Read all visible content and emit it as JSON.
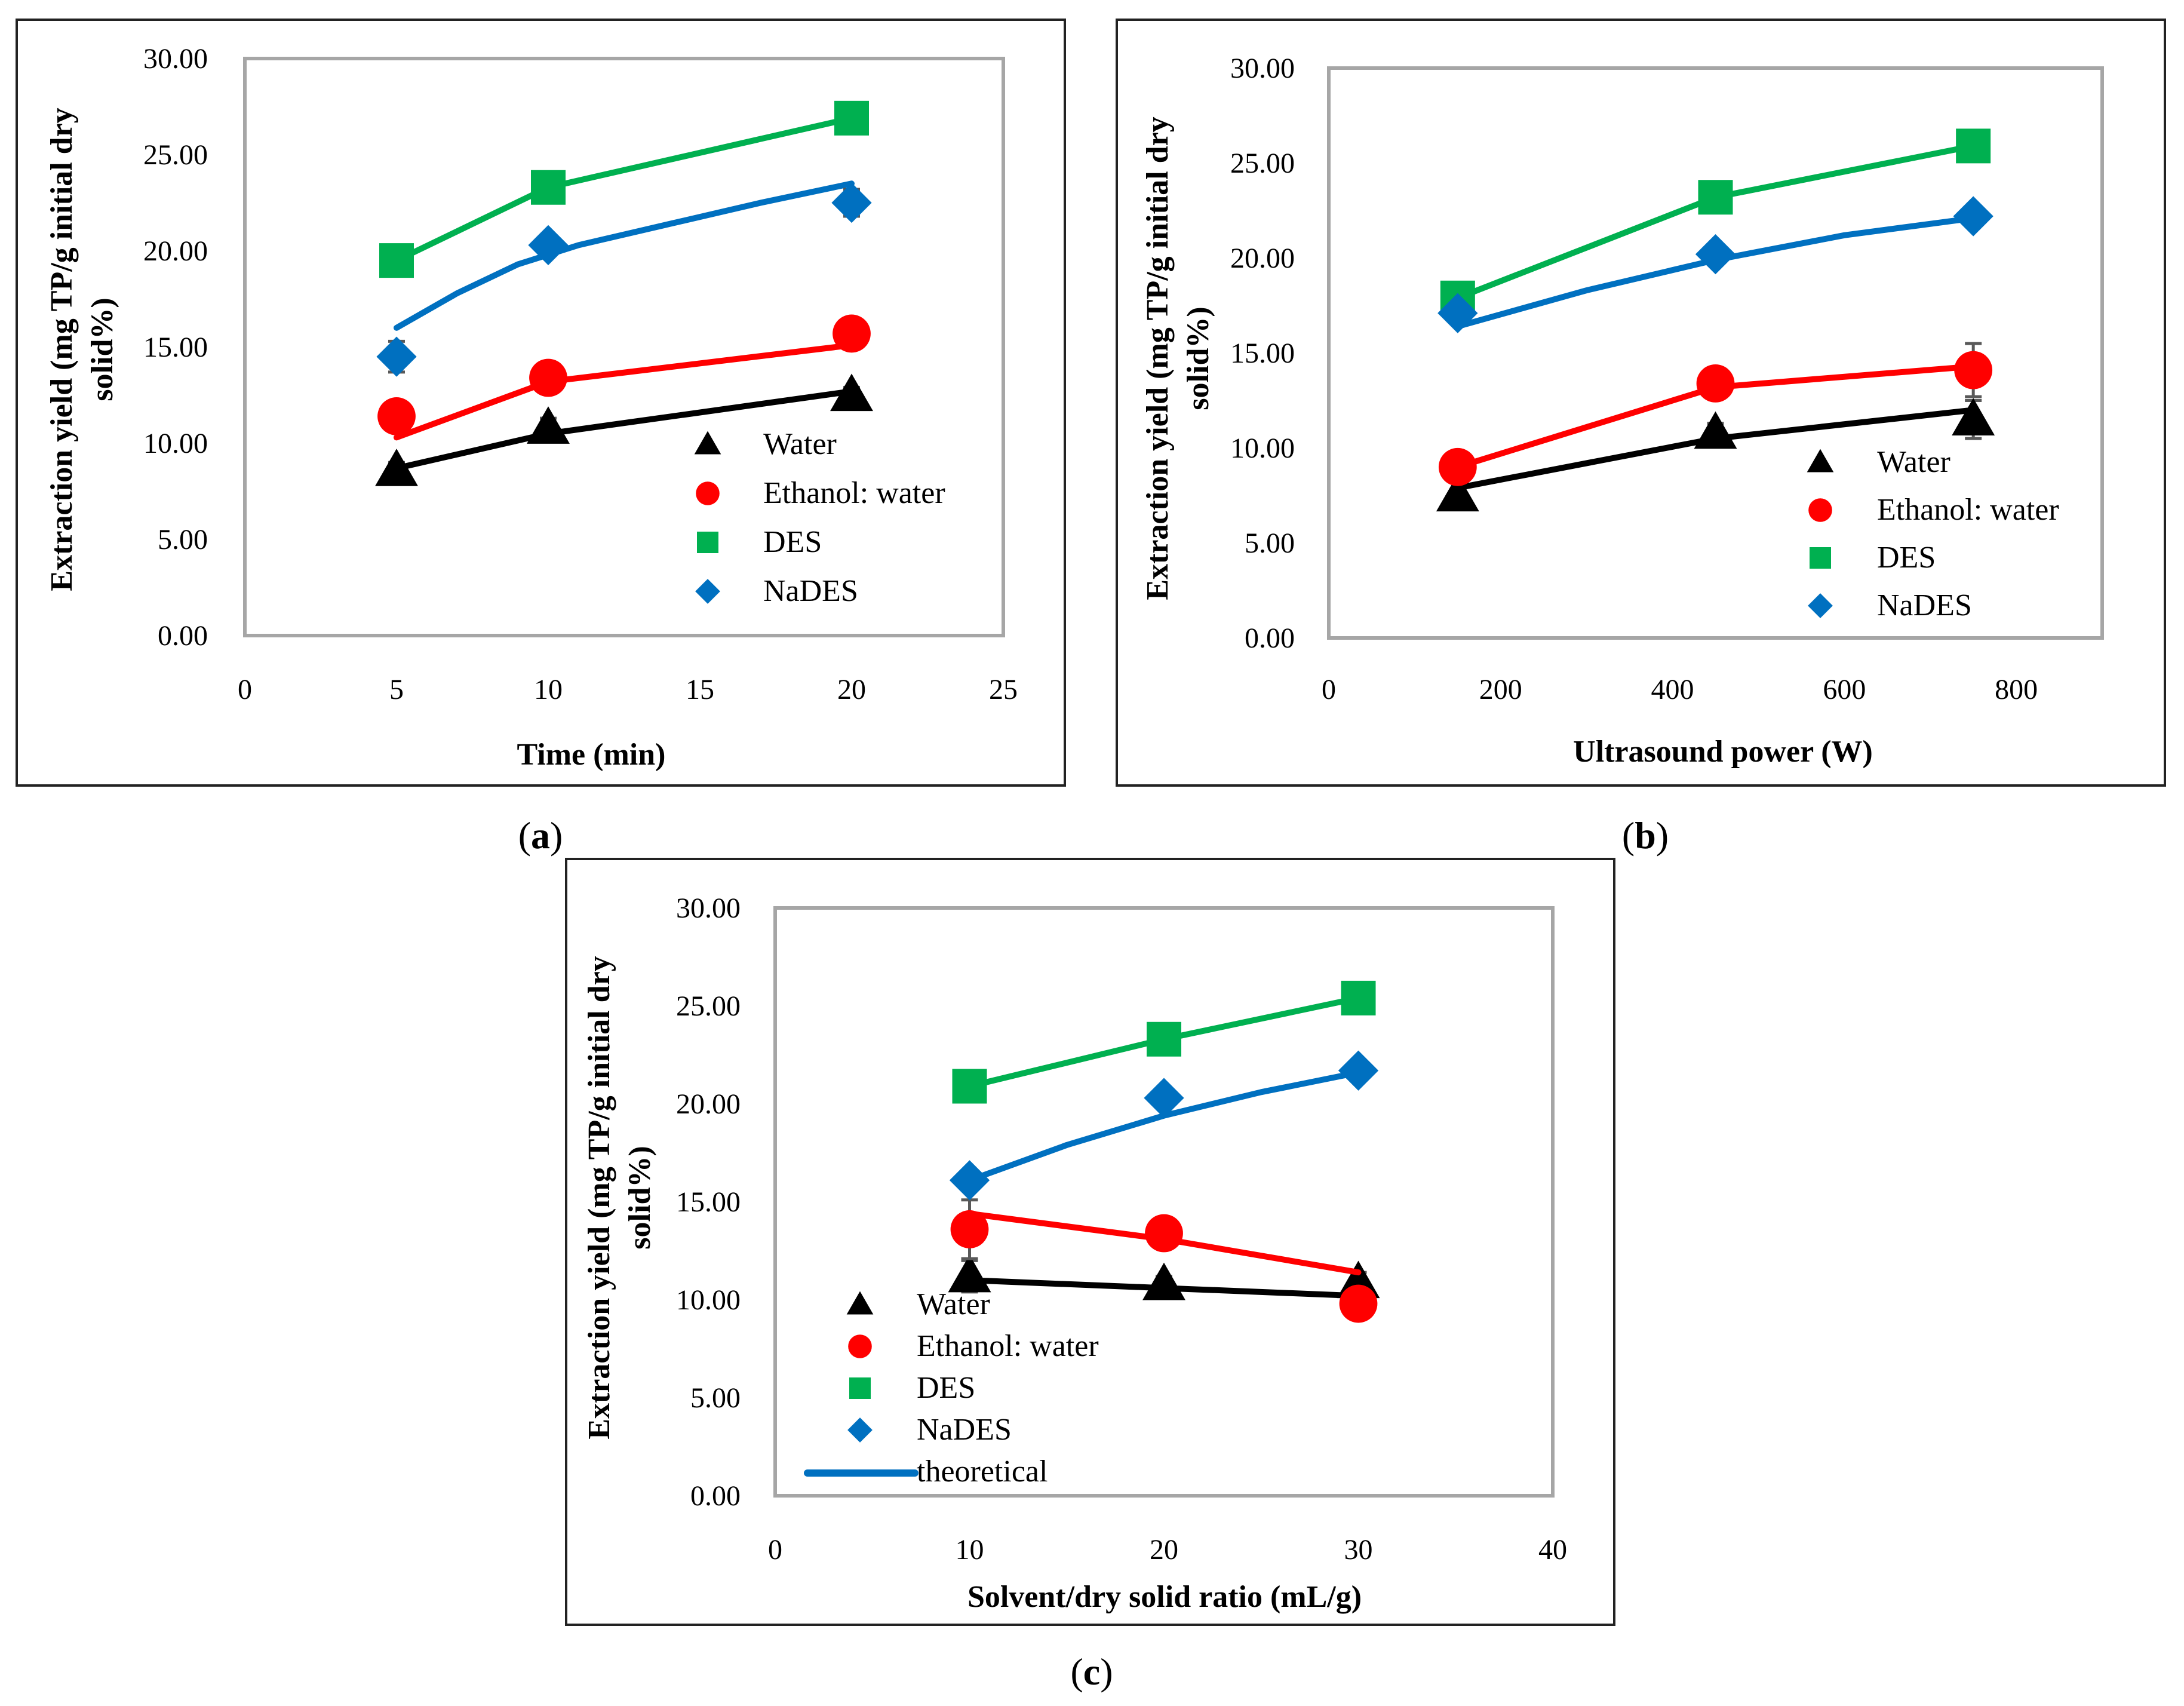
{
  "figure": {
    "colors": {
      "water": "#000000",
      "ethanol_water": "#ff0000",
      "des": "#00b050",
      "nades": "#0070c0"
    }
  },
  "chart_data": [
    {
      "id": "a",
      "type": "scatter",
      "panel_label": {
        "open": "(",
        "letter": "a",
        "close": ")"
      },
      "xlabel": "Time (min)",
      "ylabel_line1": "Extraction yield (mg TP/g initial dry",
      "ylabel_line2": "solid%)",
      "xlim": [
        0,
        25
      ],
      "ylim": [
        0,
        30
      ],
      "xticks": [
        "0",
        "5",
        "10",
        "15",
        "20",
        "25"
      ],
      "yticks": [
        "0.00",
        "5.00",
        "10.00",
        "15.00",
        "20.00",
        "25.00",
        "30.00"
      ],
      "legend": [
        "Water",
        "Ethanol: water",
        "DES",
        "NaDES"
      ],
      "series": [
        {
          "name": "Water",
          "marker": "triangle",
          "color": "#000000",
          "x": [
            5,
            10,
            20
          ],
          "y": [
            8.6,
            10.8,
            12.5
          ],
          "err": [
            0.4,
            0.5,
            0.4
          ],
          "fit_x": [
            5,
            10,
            20
          ],
          "fit_y": [
            8.7,
            10.5,
            12.7
          ]
        },
        {
          "name": "Ethanol: water",
          "marker": "circle",
          "color": "#ff0000",
          "x": [
            5,
            10,
            20
          ],
          "y": [
            11.4,
            13.4,
            15.7
          ],
          "err": [
            0.3,
            0.3,
            0.3
          ],
          "fit_x": [
            5,
            10,
            20
          ],
          "fit_y": [
            10.3,
            13.2,
            15.1
          ]
        },
        {
          "name": "DES",
          "marker": "square",
          "color": "#00b050",
          "x": [
            5,
            10,
            20
          ],
          "y": [
            19.5,
            23.3,
            26.9
          ],
          "err": [
            0.3,
            0.3,
            0.3
          ],
          "fit_x": [
            5,
            10,
            20
          ],
          "fit_y": [
            19.5,
            23.3,
            26.9
          ]
        },
        {
          "name": "NaDES",
          "marker": "diamond",
          "color": "#0070c0",
          "x": [
            5,
            10,
            20
          ],
          "y": [
            14.5,
            20.3,
            22.5
          ],
          "err": [
            0.8,
            0.3,
            0.7
          ],
          "fit_x": [
            5,
            7,
            9,
            11,
            14,
            17,
            20
          ],
          "fit_y": [
            16.0,
            17.8,
            19.3,
            20.3,
            21.4,
            22.5,
            23.5
          ]
        }
      ]
    },
    {
      "id": "b",
      "type": "scatter",
      "panel_label": {
        "open": "(",
        "letter": "b",
        "close": ")"
      },
      "xlabel": "Ultrasound power (W)",
      "ylabel_line1": "Extraction yield (mg TP/g initial dry",
      "ylabel_line2": "solid%)",
      "xlim": [
        0,
        900
      ],
      "ylim": [
        0,
        30
      ],
      "xticks": [
        "0",
        "200",
        "400",
        "600",
        "800"
      ],
      "yticks": [
        "0.00",
        "5.00",
        "10.00",
        "15.00",
        "20.00",
        "25.00",
        "30.00"
      ],
      "legend": [
        "Water",
        "Ethanol: water",
        "DES",
        "NaDES"
      ],
      "series": [
        {
          "name": "Water",
          "marker": "triangle",
          "color": "#000000",
          "x": [
            150,
            450,
            750
          ],
          "y": [
            7.5,
            10.8,
            11.5
          ],
          "err": [
            0.3,
            0.5,
            1.0
          ],
          "fit_x": [
            150,
            450,
            750
          ],
          "fit_y": [
            7.9,
            10.5,
            12.0
          ]
        },
        {
          "name": "Ethanol: water",
          "marker": "circle",
          "color": "#ff0000",
          "x": [
            150,
            450,
            750
          ],
          "y": [
            9.0,
            13.4,
            14.1
          ],
          "err": [
            0.3,
            0.4,
            1.4
          ],
          "fit_x": [
            150,
            450,
            750
          ],
          "fit_y": [
            9.0,
            13.2,
            14.3
          ]
        },
        {
          "name": "DES",
          "marker": "square",
          "color": "#00b050",
          "x": [
            150,
            450,
            750
          ],
          "y": [
            17.9,
            23.2,
            25.9
          ],
          "err": [
            0.3,
            0.4,
            0.3
          ],
          "fit_x": [
            150,
            450,
            750
          ],
          "fit_y": [
            17.9,
            23.2,
            25.9
          ]
        },
        {
          "name": "NaDES",
          "marker": "diamond",
          "color": "#0070c0",
          "x": [
            150,
            450,
            750
          ],
          "y": [
            17.1,
            20.2,
            22.2
          ],
          "err": [
            0.3,
            0.3,
            0.3
          ],
          "fit_x": [
            150,
            300,
            450,
            600,
            750
          ],
          "fit_y": [
            16.4,
            18.3,
            19.9,
            21.2,
            22.1
          ]
        }
      ]
    },
    {
      "id": "c",
      "type": "scatter",
      "panel_label": {
        "open": "(",
        "letter": "c",
        "close": ")"
      },
      "xlabel": "Solvent/dry solid ratio (mL/g)",
      "ylabel_line1": "Extraction yield (mg TP/g initial dry",
      "ylabel_line2": "solid%)",
      "xlim": [
        0,
        40
      ],
      "ylim": [
        0,
        30
      ],
      "xticks": [
        "0",
        "10",
        "20",
        "30",
        "40"
      ],
      "yticks": [
        "0.00",
        "5.00",
        "10.00",
        "15.00",
        "20.00",
        "25.00",
        "30.00"
      ],
      "legend": [
        "Water",
        "Ethanol: water",
        "DES",
        "NaDES",
        "theoretical"
      ],
      "series": [
        {
          "name": "Water",
          "marker": "triangle",
          "color": "#000000",
          "x": [
            10,
            20,
            30
          ],
          "y": [
            11.2,
            10.8,
            10.9
          ],
          "err": [
            0.8,
            0.4,
            0.5
          ],
          "fit_x": [
            10,
            20,
            30
          ],
          "fit_y": [
            11.0,
            10.6,
            10.2
          ]
        },
        {
          "name": "Ethanol: water",
          "marker": "circle",
          "color": "#ff0000",
          "x": [
            10,
            20,
            30
          ],
          "y": [
            13.6,
            13.4,
            9.8
          ],
          "err": [
            1.5,
            0.4,
            0.3
          ],
          "fit_x": [
            10,
            20,
            30
          ],
          "fit_y": [
            14.4,
            13.1,
            11.4
          ]
        },
        {
          "name": "DES",
          "marker": "square",
          "color": "#00b050",
          "x": [
            10,
            20,
            30
          ],
          "y": [
            20.9,
            23.3,
            25.4
          ],
          "err": [
            0.3,
            0.3,
            0.3
          ],
          "fit_x": [
            10,
            20,
            30
          ],
          "fit_y": [
            20.9,
            23.3,
            25.4
          ]
        },
        {
          "name": "NaDES",
          "marker": "diamond",
          "color": "#0070c0",
          "x": [
            10,
            20,
            30
          ],
          "y": [
            16.1,
            20.3,
            21.7
          ],
          "err": [
            0.3,
            0.3,
            0.4
          ],
          "fit_x": [
            10,
            15,
            20,
            25,
            30
          ],
          "fit_y": [
            16.1,
            17.9,
            19.4,
            20.6,
            21.6
          ]
        }
      ]
    }
  ]
}
